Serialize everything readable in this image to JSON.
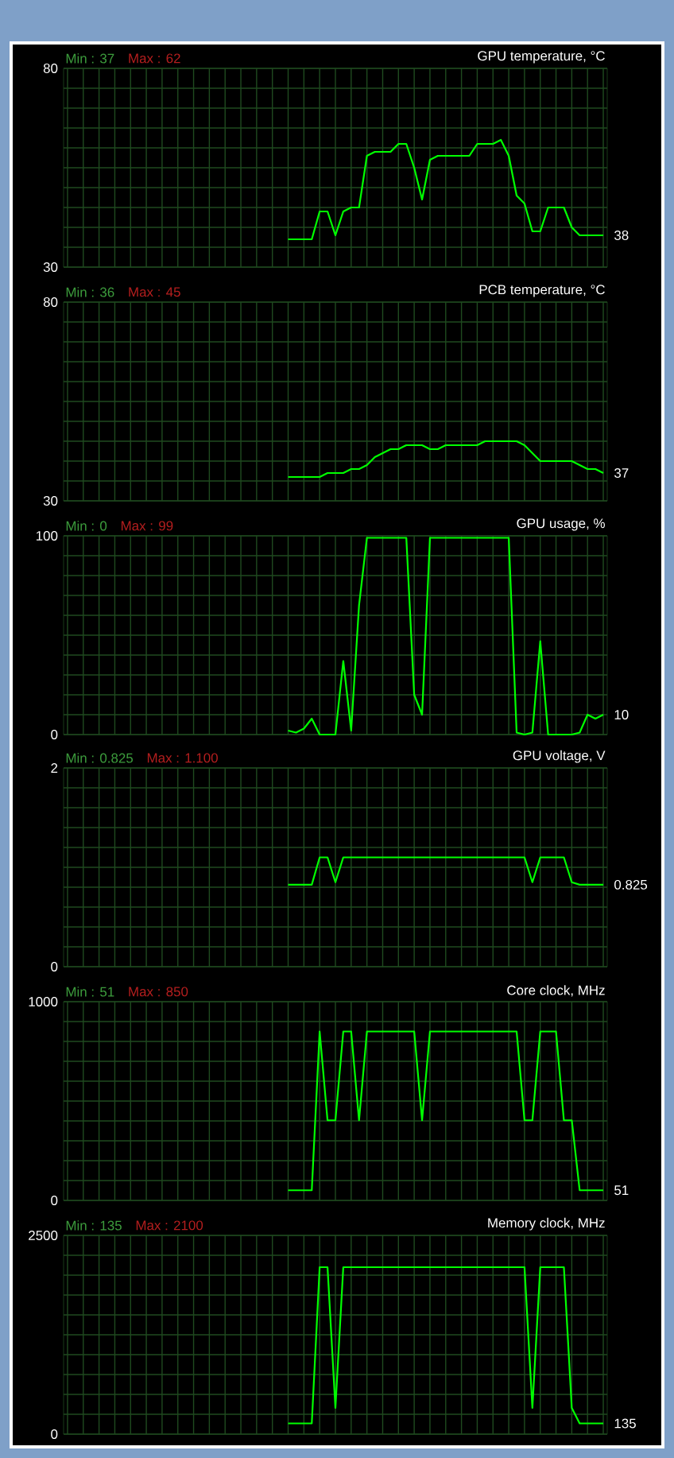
{
  "chart_data": [
    {
      "type": "line",
      "title": "GPU temperature, °C",
      "categories": [
        null,
        null,
        null,
        null,
        null,
        null,
        null,
        null,
        null,
        null,
        null,
        null,
        null,
        null,
        null,
        null,
        null,
        null,
        null,
        null,
        null,
        null,
        null,
        null,
        null,
        null,
        null,
        null,
        null,
        null,
        null,
        null,
        null,
        null,
        null,
        null,
        null,
        null,
        null,
        null,
        null,
        null,
        null,
        null,
        null,
        null,
        null,
        null,
        null,
        null,
        null,
        null,
        null,
        null,
        null,
        null,
        null,
        null,
        null,
        null,
        null,
        null,
        null,
        null,
        null,
        null,
        null,
        null,
        null
      ],
      "series": [
        {
          "color": "#00ff00",
          "values": [
            null,
            null,
            null,
            null,
            null,
            null,
            null,
            null,
            null,
            null,
            null,
            null,
            null,
            null,
            null,
            null,
            null,
            null,
            null,
            null,
            null,
            null,
            null,
            null,
            null,
            null,
            null,
            null,
            37,
            37,
            37,
            37,
            44,
            44,
            38,
            44,
            45,
            45,
            58,
            59,
            59,
            59,
            61,
            61,
            55,
            47,
            57,
            58,
            58,
            58,
            58,
            58,
            61,
            61,
            61,
            62,
            58,
            48,
            46,
            39,
            39,
            45,
            45,
            45,
            40,
            38,
            38,
            38,
            38
          ]
        }
      ],
      "ylim": [
        30,
        80
      ],
      "yticks": [
        30,
        {
          "value": 35,
          "label": null
        },
        {
          "value": 40,
          "label": null
        },
        {
          "value": 45,
          "label": null
        },
        {
          "value": 50,
          "label": null
        },
        {
          "value": 55,
          "label": null
        },
        {
          "value": 60,
          "label": null
        },
        {
          "value": 65,
          "label": null
        },
        {
          "value": 70,
          "label": null
        },
        {
          "value": 75,
          "label": null
        },
        80
      ],
      "grid": true,
      "tick_labels": "y",
      "annotations": [
        "Min : 37",
        "Max : 62",
        "38"
      ]
    },
    {
      "type": "line",
      "title": "PCB temperature, °C",
      "categories": [
        null,
        null,
        null,
        null,
        null,
        null,
        null,
        null,
        null,
        null,
        null,
        null,
        null,
        null,
        null,
        null,
        null,
        null,
        null,
        null,
        null,
        null,
        null,
        null,
        null,
        null,
        null,
        null,
        null,
        null,
        null,
        null,
        null,
        null,
        null,
        null,
        null,
        null,
        null,
        null,
        null,
        null,
        null,
        null,
        null,
        null,
        null,
        null,
        null,
        null,
        null,
        null,
        null,
        null,
        null,
        null,
        null,
        null,
        null,
        null,
        null,
        null,
        null,
        null,
        null,
        null,
        null,
        null,
        null
      ],
      "series": [
        {
          "color": "#00ff00",
          "values": [
            null,
            null,
            null,
            null,
            null,
            null,
            null,
            null,
            null,
            null,
            null,
            null,
            null,
            null,
            null,
            null,
            null,
            null,
            null,
            null,
            null,
            null,
            null,
            null,
            null,
            null,
            null,
            null,
            36,
            36,
            36,
            36,
            36,
            37,
            37,
            37,
            38,
            38,
            39,
            41,
            42,
            43,
            43,
            44,
            44,
            44,
            43,
            43,
            44,
            44,
            44,
            44,
            44,
            45,
            45,
            45,
            45,
            45,
            44,
            42,
            40,
            40,
            40,
            40,
            40,
            39,
            38,
            38,
            37
          ]
        }
      ],
      "ylim": [
        30,
        80
      ],
      "yticks": [
        30,
        {
          "value": 35,
          "label": null
        },
        {
          "value": 40,
          "label": null
        },
        {
          "value": 45,
          "label": null
        },
        {
          "value": 50,
          "label": null
        },
        {
          "value": 55,
          "label": null
        },
        {
          "value": 60,
          "label": null
        },
        {
          "value": 65,
          "label": null
        },
        {
          "value": 70,
          "label": null
        },
        {
          "value": 75,
          "label": null
        },
        80
      ],
      "grid": true,
      "tick_labels": "y",
      "annotations": [
        "Min : 36",
        "Max : 45",
        "37"
      ]
    },
    {
      "type": "line",
      "title": "GPU usage, %",
      "categories": [
        null,
        null,
        null,
        null,
        null,
        null,
        null,
        null,
        null,
        null,
        null,
        null,
        null,
        null,
        null,
        null,
        null,
        null,
        null,
        null,
        null,
        null,
        null,
        null,
        null,
        null,
        null,
        null,
        null,
        null,
        null,
        null,
        null,
        null,
        null,
        null,
        null,
        null,
        null,
        null,
        null,
        null,
        null,
        null,
        null,
        null,
        null,
        null,
        null,
        null,
        null,
        null,
        null,
        null,
        null,
        null,
        null,
        null,
        null,
        null,
        null,
        null,
        null,
        null,
        null,
        null,
        null,
        null,
        null
      ],
      "series": [
        {
          "color": "#00ff00",
          "values": [
            null,
            null,
            null,
            null,
            null,
            null,
            null,
            null,
            null,
            null,
            null,
            null,
            null,
            null,
            null,
            null,
            null,
            null,
            null,
            null,
            null,
            null,
            null,
            null,
            null,
            null,
            null,
            null,
            2,
            1,
            3,
            8,
            0,
            0,
            0,
            37,
            2,
            65,
            99,
            99,
            99,
            99,
            99,
            99,
            20,
            10,
            99,
            99,
            99,
            99,
            99,
            99,
            99,
            99,
            99,
            99,
            99,
            1,
            0,
            1,
            47,
            0,
            0,
            0,
            0,
            1,
            10,
            8,
            10
          ]
        }
      ],
      "ylim": [
        0,
        100
      ],
      "yticks": [
        0,
        {
          "value": 10,
          "label": null
        },
        {
          "value": 20,
          "label": null
        },
        {
          "value": 30,
          "label": null
        },
        {
          "value": 40,
          "label": null
        },
        {
          "value": 50,
          "label": null
        },
        {
          "value": 60,
          "label": null
        },
        {
          "value": 70,
          "label": null
        },
        {
          "value": 80,
          "label": null
        },
        {
          "value": 90,
          "label": null
        },
        100
      ],
      "grid": true,
      "tick_labels": "y",
      "annotations": [
        "Min : 0",
        "Max : 99",
        "10"
      ]
    },
    {
      "type": "line",
      "title": "GPU voltage, V",
      "categories": [
        null,
        null,
        null,
        null,
        null,
        null,
        null,
        null,
        null,
        null,
        null,
        null,
        null,
        null,
        null,
        null,
        null,
        null,
        null,
        null,
        null,
        null,
        null,
        null,
        null,
        null,
        null,
        null,
        null,
        null,
        null,
        null,
        null,
        null,
        null,
        null,
        null,
        null,
        null,
        null,
        null,
        null,
        null,
        null,
        null,
        null,
        null,
        null,
        null,
        null,
        null,
        null,
        null,
        null,
        null,
        null,
        null,
        null,
        null,
        null,
        null,
        null,
        null,
        null,
        null,
        null,
        null,
        null,
        null
      ],
      "series": [
        {
          "color": "#00ff00",
          "values": [
            null,
            null,
            null,
            null,
            null,
            null,
            null,
            null,
            null,
            null,
            null,
            null,
            null,
            null,
            null,
            null,
            null,
            null,
            null,
            null,
            null,
            null,
            null,
            null,
            null,
            null,
            null,
            null,
            0.825,
            0.825,
            0.825,
            0.825,
            1.1,
            1.1,
            0.85,
            1.1,
            1.1,
            1.1,
            1.1,
            1.1,
            1.1,
            1.1,
            1.1,
            1.1,
            1.1,
            1.1,
            1.1,
            1.1,
            1.1,
            1.1,
            1.1,
            1.1,
            1.1,
            1.1,
            1.1,
            1.1,
            1.1,
            1.1,
            1.1,
            0.85,
            1.1,
            1.1,
            1.1,
            1.1,
            0.85,
            0.825,
            0.825,
            0.825,
            0.825
          ]
        }
      ],
      "ylim": [
        0,
        2
      ],
      "yticks": [
        0,
        {
          "value": 0.2,
          "label": null
        },
        {
          "value": 0.4,
          "label": null
        },
        {
          "value": 0.6,
          "label": null
        },
        {
          "value": 0.8,
          "label": null
        },
        {
          "value": 1,
          "label": null
        },
        {
          "value": 1.2,
          "label": null
        },
        {
          "value": 1.4,
          "label": null
        },
        {
          "value": 1.6,
          "label": null
        },
        {
          "value": 1.8,
          "label": null
        },
        2
      ],
      "grid": true,
      "tick_labels": "y",
      "annotations": [
        "Min : 0.825",
        "Max : 1.100",
        "0.825"
      ]
    },
    {
      "type": "line",
      "title": "Core clock, MHz",
      "categories": [
        null,
        null,
        null,
        null,
        null,
        null,
        null,
        null,
        null,
        null,
        null,
        null,
        null,
        null,
        null,
        null,
        null,
        null,
        null,
        null,
        null,
        null,
        null,
        null,
        null,
        null,
        null,
        null,
        null,
        null,
        null,
        null,
        null,
        null,
        null,
        null,
        null,
        null,
        null,
        null,
        null,
        null,
        null,
        null,
        null,
        null,
        null,
        null,
        null,
        null,
        null,
        null,
        null,
        null,
        null,
        null,
        null,
        null,
        null,
        null,
        null,
        null,
        null,
        null,
        null,
        null,
        null,
        null,
        null
      ],
      "series": [
        {
          "color": "#00ff00",
          "values": [
            null,
            null,
            null,
            null,
            null,
            null,
            null,
            null,
            null,
            null,
            null,
            null,
            null,
            null,
            null,
            null,
            null,
            null,
            null,
            null,
            null,
            null,
            null,
            null,
            null,
            null,
            null,
            null,
            51,
            51,
            51,
            51,
            850,
            403,
            403,
            850,
            850,
            403,
            850,
            850,
            850,
            850,
            850,
            850,
            850,
            403,
            850,
            850,
            850,
            850,
            850,
            850,
            850,
            850,
            850,
            850,
            850,
            850,
            403,
            403,
            850,
            850,
            850,
            403,
            403,
            51,
            51,
            51,
            51
          ]
        }
      ],
      "ylim": [
        0,
        1000
      ],
      "yticks": [
        0,
        {
          "value": 100,
          "label": null
        },
        {
          "value": 200,
          "label": null
        },
        {
          "value": 300,
          "label": null
        },
        {
          "value": 400,
          "label": null
        },
        {
          "value": 500,
          "label": null
        },
        {
          "value": 600,
          "label": null
        },
        {
          "value": 700,
          "label": null
        },
        {
          "value": 800,
          "label": null
        },
        {
          "value": 900,
          "label": null
        },
        1000
      ],
      "grid": true,
      "tick_labels": "y",
      "annotations": [
        "Min : 51",
        "Max : 850",
        "51"
      ]
    },
    {
      "type": "line",
      "title": "Memory clock, MHz",
      "categories": [
        null,
        null,
        null,
        null,
        null,
        null,
        null,
        null,
        null,
        null,
        null,
        null,
        null,
        null,
        null,
        null,
        null,
        null,
        null,
        null,
        null,
        null,
        null,
        null,
        null,
        null,
        null,
        null,
        null,
        null,
        null,
        null,
        null,
        null,
        null,
        null,
        null,
        null,
        null,
        null,
        null,
        null,
        null,
        null,
        null,
        null,
        null,
        null,
        null,
        null,
        null,
        null,
        null,
        null,
        null,
        null,
        null,
        null,
        null,
        null,
        null,
        null,
        null,
        null,
        null,
        null,
        null,
        null,
        null
      ],
      "series": [
        {
          "color": "#00ff00",
          "values": [
            null,
            null,
            null,
            null,
            null,
            null,
            null,
            null,
            null,
            null,
            null,
            null,
            null,
            null,
            null,
            null,
            null,
            null,
            null,
            null,
            null,
            null,
            null,
            null,
            null,
            null,
            null,
            null,
            135,
            135,
            135,
            135,
            2100,
            2100,
            330,
            2100,
            2100,
            2100,
            2100,
            2100,
            2100,
            2100,
            2100,
            2100,
            2100,
            2100,
            2100,
            2100,
            2100,
            2100,
            2100,
            2100,
            2100,
            2100,
            2100,
            2100,
            2100,
            2100,
            2100,
            330,
            2100,
            2100,
            2100,
            2100,
            330,
            135,
            135,
            135,
            135
          ]
        }
      ],
      "ylim": [
        0,
        2500
      ],
      "yticks": [
        0,
        {
          "value": 250,
          "label": null
        },
        {
          "value": 500,
          "label": null
        },
        {
          "value": 750,
          "label": null
        },
        {
          "value": 1000,
          "label": null
        },
        {
          "value": 1250,
          "label": null
        },
        {
          "value": 1500,
          "label": null
        },
        {
          "value": 1750,
          "label": null
        },
        {
          "value": 2000,
          "label": null
        },
        {
          "value": 2250,
          "label": null
        },
        2500
      ],
      "grid": true,
      "tick_labels": "y",
      "annotations": [
        "Min : 135",
        "Max : 2100",
        "135"
      ]
    }
  ]
}
